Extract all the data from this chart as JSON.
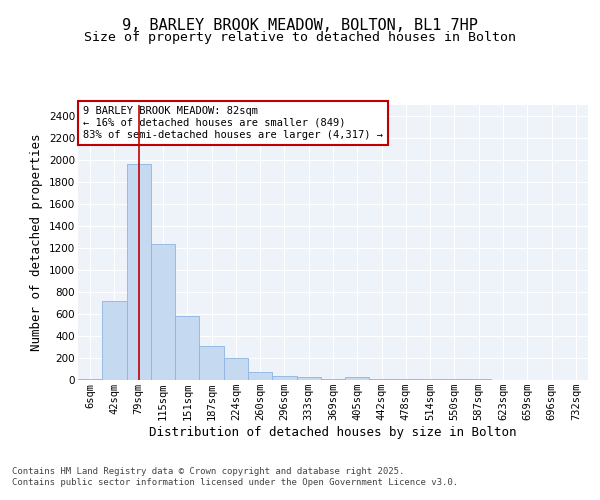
{
  "title1": "9, BARLEY BROOK MEADOW, BOLTON, BL1 7HP",
  "title2": "Size of property relative to detached houses in Bolton",
  "xlabel": "Distribution of detached houses by size in Bolton",
  "ylabel": "Number of detached properties",
  "categories": [
    "6sqm",
    "42sqm",
    "79sqm",
    "115sqm",
    "151sqm",
    "187sqm",
    "224sqm",
    "260sqm",
    "296sqm",
    "333sqm",
    "369sqm",
    "405sqm",
    "442sqm",
    "478sqm",
    "514sqm",
    "550sqm",
    "587sqm",
    "623sqm",
    "659sqm",
    "696sqm",
    "732sqm"
  ],
  "values": [
    10,
    720,
    1960,
    1240,
    580,
    305,
    200,
    75,
    40,
    30,
    10,
    30,
    10,
    5,
    5,
    5,
    5,
    3,
    3,
    3,
    3
  ],
  "bar_color": "#c5d9f1",
  "bar_edge_color": "#8db4e2",
  "highlight_bar_index": 2,
  "highlight_color": "#c00000",
  "annotation_text": "9 BARLEY BROOK MEADOW: 82sqm\n← 16% of detached houses are smaller (849)\n83% of semi-detached houses are larger (4,317) →",
  "annotation_box_color": "#ffffff",
  "annotation_box_edge_color": "#c00000",
  "ylim": [
    0,
    2500
  ],
  "yticks": [
    0,
    200,
    400,
    600,
    800,
    1000,
    1200,
    1400,
    1600,
    1800,
    2000,
    2200,
    2400
  ],
  "background_color": "#ffffff",
  "plot_bg_color": "#eef2f9",
  "grid_color": "#ffffff",
  "footer": "Contains HM Land Registry data © Crown copyright and database right 2025.\nContains public sector information licensed under the Open Government Licence v3.0.",
  "title1_fontsize": 11,
  "title2_fontsize": 9.5,
  "axis_label_fontsize": 9,
  "tick_fontsize": 7.5,
  "annotation_fontsize": 7.5,
  "footer_fontsize": 6.5
}
